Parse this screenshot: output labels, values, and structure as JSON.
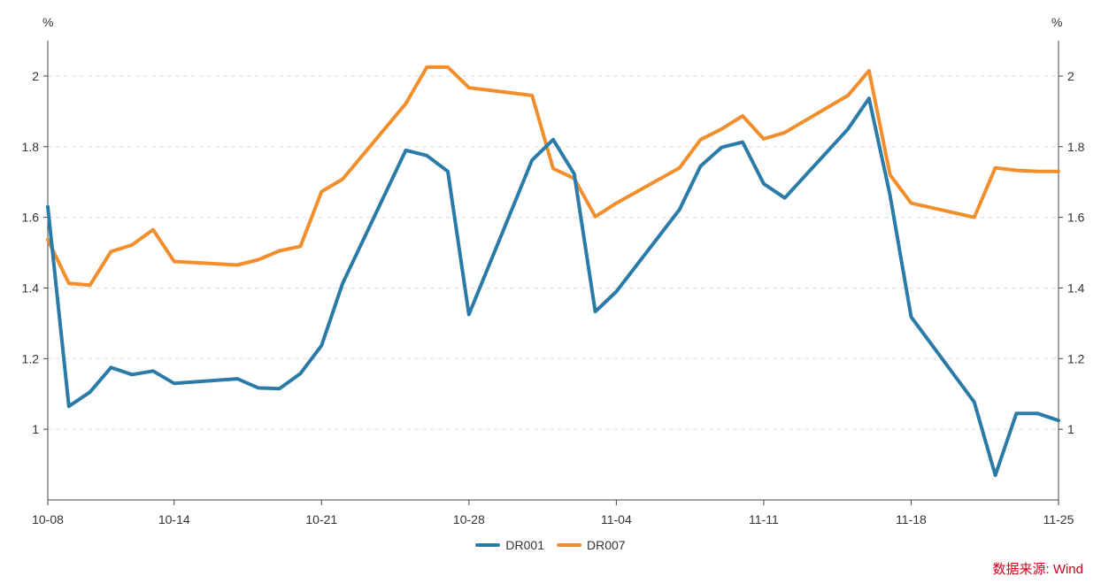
{
  "chart_data": {
    "type": "line",
    "y_unit_left": "%",
    "y_unit_right": "%",
    "ylim": [
      0.8,
      2.1
    ],
    "yticks": [
      1,
      1.2,
      1.4,
      1.6,
      1.8,
      2
    ],
    "x_tick_labels": [
      "10-08",
      "10-14",
      "10-21",
      "10-28",
      "11-04",
      "11-11",
      "11-18",
      "11-25"
    ],
    "x_tick_days": [
      0,
      6,
      13,
      20,
      27,
      34,
      41,
      48
    ],
    "x_days": [
      0,
      1,
      2,
      3,
      4,
      5,
      6,
      9,
      10,
      11,
      12,
      13,
      14,
      17,
      18,
      19,
      20,
      23,
      24,
      25,
      26,
      27,
      30,
      31,
      32,
      33,
      34,
      35,
      38,
      39,
      40,
      41,
      44,
      45,
      46,
      47,
      48
    ],
    "series": [
      {
        "name": "DR001",
        "color": "#2b7ba8",
        "values": [
          1.63,
          1.065,
          1.105,
          1.175,
          1.155,
          1.165,
          1.13,
          1.143,
          1.117,
          1.115,
          1.158,
          1.237,
          1.413,
          1.79,
          1.775,
          1.73,
          1.325,
          1.762,
          1.82,
          1.723,
          1.333,
          1.39,
          1.622,
          1.745,
          1.798,
          1.813,
          1.695,
          1.655,
          1.85,
          1.937,
          1.662,
          1.318,
          1.077,
          0.87,
          1.045,
          1.045,
          1.025
        ]
      },
      {
        "name": "DR007",
        "color": "#f28e2b",
        "values": [
          1.537,
          1.413,
          1.408,
          1.503,
          1.522,
          1.565,
          1.475,
          1.465,
          1.48,
          1.505,
          1.518,
          1.673,
          1.708,
          1.922,
          2.025,
          2.025,
          1.967,
          1.945,
          1.738,
          1.71,
          1.602,
          1.64,
          1.74,
          1.82,
          1.85,
          1.887,
          1.822,
          1.84,
          1.945,
          2.015,
          1.72,
          1.64,
          1.6,
          1.74,
          1.733,
          1.73,
          1.73
        ]
      }
    ],
    "grid": "horizontal dashed",
    "legend_position": "bottom-center"
  },
  "source_label": "数据来源: Wind"
}
